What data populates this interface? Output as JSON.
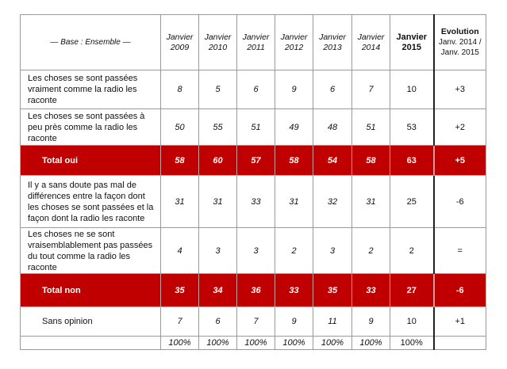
{
  "header": {
    "base": "— Base : Ensemble —",
    "years": [
      "Janvier 2009",
      "Janvier 2010",
      "Janvier 2011",
      "Janvier 2012",
      "Janvier 2013",
      "Janvier 2014",
      "Janvier 2015"
    ],
    "evolution": {
      "title": "Evolution",
      "subtitle": "Janv. 2014 / Janv. 2015"
    }
  },
  "rows": [
    {
      "label": "Les choses se sont passées vraiment comme la radio les raconte",
      "values": [
        8,
        5,
        6,
        9,
        6,
        7,
        10
      ],
      "evolution": "+3"
    },
    {
      "label": "Les choses se sont passées à peu près comme la radio les raconte",
      "values": [
        50,
        55,
        51,
        49,
        48,
        51,
        53
      ],
      "evolution": "+2"
    },
    {
      "label": "Total oui",
      "values": [
        58,
        60,
        57,
        58,
        54,
        58,
        63
      ],
      "evolution": "+5",
      "color": "#c00000"
    },
    {
      "label": "Il y a sans doute pas mal de différences entre la façon dont les choses se sont passées et la façon dont la radio les raconte",
      "values": [
        31,
        31,
        33,
        31,
        32,
        31,
        25
      ],
      "evolution": "-6"
    },
    {
      "label": "Les choses ne se sont vraisemblablement pas passées du tout comme la radio les raconte",
      "values": [
        4,
        3,
        3,
        2,
        3,
        2,
        2
      ],
      "evolution": "="
    },
    {
      "label": "Total non",
      "values": [
        35,
        34,
        36,
        33,
        35,
        33,
        27
      ],
      "evolution": "-6",
      "color": "#c00000"
    },
    {
      "label": "Sans opinion",
      "values": [
        7,
        6,
        7,
        9,
        11,
        9,
        10
      ],
      "evolution": "+1"
    }
  ],
  "totals": [
    "100%",
    "100%",
    "100%",
    "100%",
    "100%",
    "100%",
    "100%"
  ]
}
